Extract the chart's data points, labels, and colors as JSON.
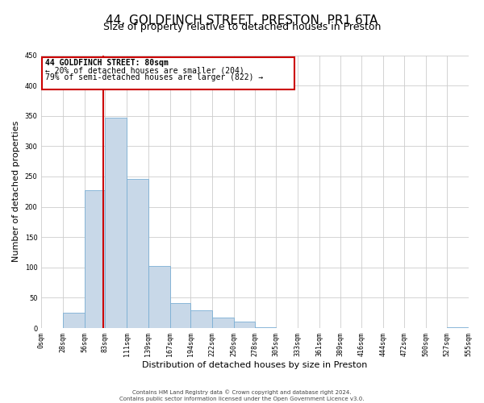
{
  "title_line1": "44, GOLDFINCH STREET, PRESTON, PR1 6TA",
  "title_line2": "Size of property relative to detached houses in Preston",
  "xlabel": "Distribution of detached houses by size in Preston",
  "ylabel": "Number of detached properties",
  "bar_edges": [
    0,
    28,
    56,
    83,
    111,
    139,
    167,
    194,
    222,
    250,
    278,
    305,
    333,
    361,
    389,
    416,
    444,
    472,
    500,
    527,
    555
  ],
  "bar_heights": [
    0,
    25,
    228,
    347,
    246,
    102,
    41,
    30,
    17,
    11,
    1,
    0,
    0,
    0,
    0,
    0,
    0,
    0,
    0,
    1,
    0
  ],
  "bar_color": "#c8d8e8",
  "bar_edge_color": "#7bafd4",
  "property_line_x": 80,
  "property_line_color": "#cc0000",
  "annotation_text_line1": "44 GOLDFINCH STREET: 80sqm",
  "annotation_text_line2": "← 20% of detached houses are smaller (204)",
  "annotation_text_line3": "79% of semi-detached houses are larger (822) →",
  "annotation_box_color": "#cc0000",
  "ylim": [
    0,
    450
  ],
  "xlim": [
    0,
    555
  ],
  "tick_labels": [
    "0sqm",
    "28sqm",
    "56sqm",
    "83sqm",
    "111sqm",
    "139sqm",
    "167sqm",
    "194sqm",
    "222sqm",
    "250sqm",
    "278sqm",
    "305sqm",
    "333sqm",
    "361sqm",
    "389sqm",
    "416sqm",
    "444sqm",
    "472sqm",
    "500sqm",
    "527sqm",
    "555sqm"
  ],
  "yticks": [
    0,
    50,
    100,
    150,
    200,
    250,
    300,
    350,
    400,
    450
  ],
  "footer_line1": "Contains HM Land Registry data © Crown copyright and database right 2024.",
  "footer_line2": "Contains public sector information licensed under the Open Government Licence v3.0.",
  "bg_color": "#ffffff",
  "grid_color": "#cccccc",
  "title1_fontsize": 11,
  "title2_fontsize": 9,
  "axis_label_fontsize": 8,
  "tick_fontsize": 6,
  "footer_fontsize": 5,
  "annot_fontsize": 7
}
